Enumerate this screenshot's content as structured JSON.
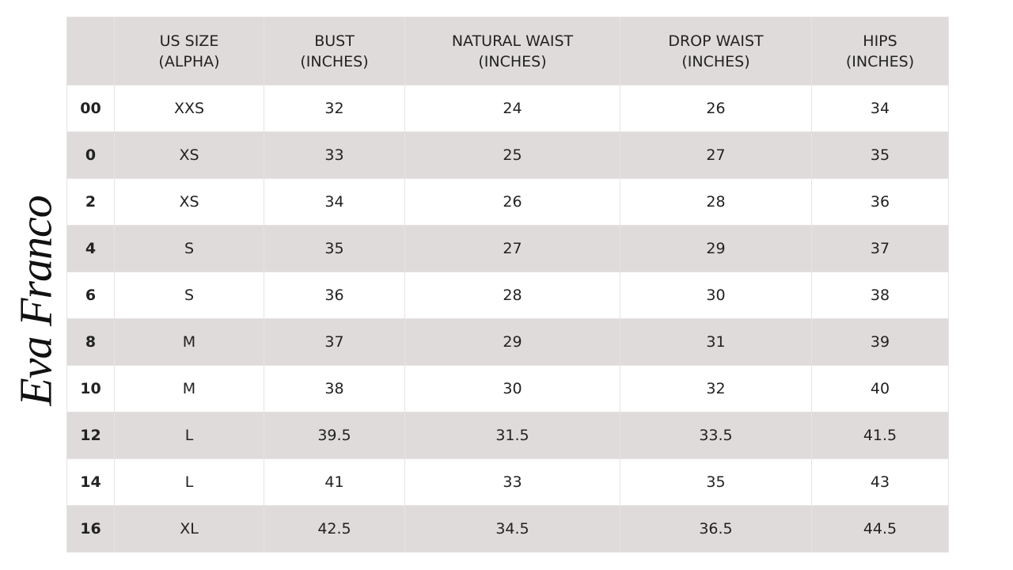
{
  "brand": "Eva Franco",
  "table": {
    "header": [
      [
        "US SIZE",
        "(ALPHA)"
      ],
      [
        "BUST",
        "(INCHES)"
      ],
      [
        "NATURAL WAIST",
        "(INCHES)"
      ],
      [
        "DROP WAIST",
        "(INCHES)"
      ],
      [
        "HIPS",
        "(INCHES)"
      ]
    ],
    "rows": [
      [
        "00",
        "XXS",
        "32",
        "24",
        "26",
        "34"
      ],
      [
        "0",
        "XS",
        "33",
        "25",
        "27",
        "35"
      ],
      [
        "2",
        "XS",
        "34",
        "26",
        "28",
        "36"
      ],
      [
        "4",
        "S",
        "35",
        "27",
        "29",
        "37"
      ],
      [
        "6",
        "S",
        "36",
        "28",
        "30",
        "38"
      ],
      [
        "8",
        "M",
        "37",
        "29",
        "31",
        "39"
      ],
      [
        "10",
        "M",
        "38",
        "30",
        "32",
        "40"
      ],
      [
        "12",
        "L",
        "39.5",
        "31.5",
        "33.5",
        "41.5"
      ],
      [
        "14",
        "L",
        "41",
        "33",
        "35",
        "43"
      ],
      [
        "16",
        "XL",
        "42.5",
        "34.5",
        "36.5",
        "44.5"
      ]
    ]
  }
}
